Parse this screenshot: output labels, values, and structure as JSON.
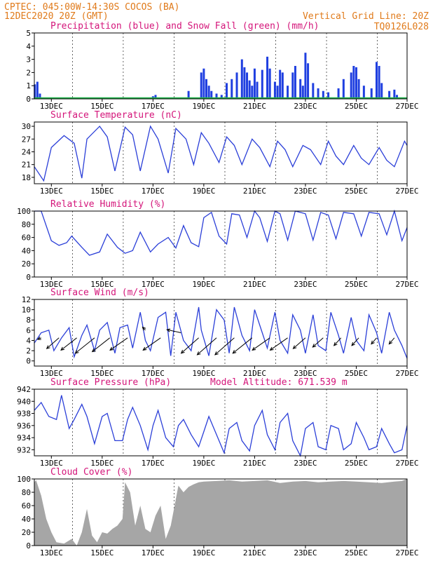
{
  "header": {
    "line1_left": "CPTEC:   045:00W-14:30S   COCOS (BA)",
    "line2_left": "12DEC2020 20Z (GMT)",
    "line1_right": "Vertical Grid Line: 20Z",
    "line2_right": "TQ0126L028"
  },
  "colors": {
    "header": "#e07a1a",
    "title": "#d4157a",
    "precip": "#1f3fe0",
    "snow": "#22b14c",
    "line": "#2b3fd8",
    "wind_arrow": "#000000",
    "cloud": "#a6a6a6"
  },
  "x_axis": {
    "start_day": 12.33,
    "end_day": 27.0,
    "tick_days": [
      13,
      15,
      17,
      19,
      21,
      23,
      25,
      27
    ],
    "tick_labels": [
      "13DEC",
      "15DEC",
      "17DEC",
      "19DEC",
      "21DEC",
      "23DEC",
      "25DEC",
      "27DEC"
    ],
    "grid_days": [
      13.83,
      15.83,
      17.83,
      19.83,
      21.83,
      23.83,
      25.83
    ]
  },
  "chart_data": [
    {
      "id": "precip",
      "type": "bar",
      "title": "Precipitation (blue) and Snow Fall (green) (mm/h)",
      "ylim": [
        0,
        5
      ],
      "yticks": [
        0,
        1,
        2,
        3,
        4,
        5
      ],
      "series": [
        {
          "name": "Precipitation",
          "x": [
            12.35,
            12.45,
            12.55,
            13.3,
            17.0,
            17.1,
            18.4,
            18.9,
            19.0,
            19.1,
            19.2,
            19.3,
            19.5,
            19.7,
            19.9,
            20.1,
            20.3,
            20.5,
            20.6,
            20.7,
            20.8,
            20.9,
            21.0,
            21.1,
            21.3,
            21.5,
            21.6,
            21.8,
            21.9,
            22.0,
            22.1,
            22.3,
            22.5,
            22.6,
            22.8,
            22.9,
            23.0,
            23.1,
            23.3,
            23.5,
            23.7,
            23.9,
            24.3,
            24.5,
            24.8,
            24.9,
            25.0,
            25.1,
            25.3,
            25.6,
            25.8,
            25.9,
            26.0,
            26.3,
            26.5,
            26.6
          ],
          "values": [
            1.1,
            1.3,
            0.4,
            0.1,
            0.2,
            0.3,
            0.6,
            2.0,
            2.3,
            1.5,
            1.0,
            0.6,
            0.4,
            0.3,
            1.2,
            1.5,
            2.0,
            3.0,
            2.4,
            2.0,
            1.4,
            1.0,
            2.3,
            1.3,
            2.2,
            3.2,
            2.3,
            1.3,
            1.0,
            2.2,
            2.0,
            1.0,
            2.0,
            2.5,
            1.5,
            1.0,
            3.5,
            2.7,
            1.2,
            0.8,
            0.6,
            0.5,
            0.8,
            1.5,
            2.0,
            2.5,
            2.4,
            1.5,
            1.0,
            0.8,
            2.8,
            2.5,
            1.2,
            0.6,
            0.7,
            0.3
          ]
        },
        {
          "name": "Snow Fall",
          "x": [
            12.33,
            27.0
          ],
          "values": [
            0,
            0
          ]
        }
      ]
    },
    {
      "id": "temp",
      "type": "line",
      "title": "Surface Temperature (nC)",
      "ylim": [
        16.5,
        31
      ],
      "yticks": [
        18,
        21,
        24,
        27,
        30
      ],
      "series": [
        {
          "name": "Temperature",
          "x": [
            12.33,
            12.7,
            13.0,
            13.5,
            13.9,
            14.2,
            14.4,
            14.9,
            15.2,
            15.5,
            15.9,
            16.2,
            16.5,
            16.9,
            17.2,
            17.6,
            17.9,
            18.3,
            18.6,
            18.9,
            19.2,
            19.6,
            19.9,
            20.2,
            20.5,
            20.9,
            21.2,
            21.6,
            21.9,
            22.2,
            22.5,
            22.9,
            23.2,
            23.6,
            23.9,
            24.2,
            24.5,
            24.9,
            25.2,
            25.5,
            25.9,
            26.2,
            26.5,
            26.9,
            27.0
          ],
          "values": [
            20.5,
            17.2,
            25.0,
            27.8,
            26.0,
            17.8,
            27.0,
            30.0,
            27.5,
            19.5,
            29.8,
            28.0,
            19.5,
            30.0,
            27.0,
            19.0,
            29.5,
            27.0,
            21.0,
            28.5,
            26.0,
            21.5,
            27.5,
            25.5,
            21.0,
            27.0,
            25.0,
            20.5,
            26.5,
            24.5,
            20.5,
            25.5,
            24.5,
            21.0,
            26.5,
            23.0,
            21.0,
            25.5,
            22.5,
            21.0,
            25.0,
            22.0,
            20.5,
            26.5,
            25.5
          ]
        }
      ]
    },
    {
      "id": "rh",
      "type": "line",
      "title": "Relative Humidity (%)",
      "ylim": [
        0,
        100
      ],
      "yticks": [
        0,
        20,
        40,
        60,
        80,
        100
      ],
      "series": [
        {
          "name": "Relative Humidity",
          "x": [
            12.33,
            12.6,
            13.0,
            13.3,
            13.6,
            13.8,
            14.2,
            14.5,
            14.9,
            15.2,
            15.6,
            15.9,
            16.2,
            16.5,
            16.9,
            17.2,
            17.6,
            17.9,
            18.2,
            18.5,
            18.8,
            19.0,
            19.3,
            19.6,
            19.9,
            20.1,
            20.4,
            20.7,
            21.0,
            21.2,
            21.5,
            21.8,
            22.0,
            22.3,
            22.6,
            23.0,
            23.3,
            23.6,
            23.9,
            24.2,
            24.5,
            24.9,
            25.2,
            25.5,
            25.9,
            26.2,
            26.5,
            26.8,
            27.0
          ],
          "values": [
            100,
            100,
            55,
            48,
            52,
            62,
            45,
            33,
            38,
            65,
            45,
            36,
            40,
            68,
            38,
            50,
            60,
            44,
            78,
            52,
            46,
            90,
            98,
            62,
            50,
            96,
            94,
            60,
            100,
            90,
            54,
            100,
            96,
            56,
            100,
            96,
            56,
            98,
            94,
            58,
            98,
            96,
            62,
            98,
            96,
            64,
            100,
            55,
            75
          ]
        }
      ]
    },
    {
      "id": "wind",
      "type": "line",
      "title": "Surface Wind (m/s)",
      "ylim": [
        -1,
        12
      ],
      "yticks": [
        0,
        2,
        4,
        6,
        8,
        10,
        12
      ],
      "series": [
        {
          "name": "Wind speed",
          "x": [
            12.33,
            12.6,
            12.9,
            13.1,
            13.4,
            13.7,
            13.9,
            14.2,
            14.4,
            14.7,
            14.9,
            15.2,
            15.5,
            15.7,
            16.0,
            16.2,
            16.5,
            16.7,
            16.9,
            17.2,
            17.5,
            17.7,
            17.9,
            18.2,
            18.5,
            18.8,
            18.9,
            19.2,
            19.5,
            19.8,
            20.0,
            20.2,
            20.5,
            20.8,
            21.0,
            21.3,
            21.5,
            21.8,
            22.0,
            22.3,
            22.5,
            22.8,
            23.0,
            23.3,
            23.5,
            23.8,
            24.0,
            24.3,
            24.5,
            24.8,
            25.0,
            25.3,
            25.5,
            25.8,
            26.0,
            26.3,
            26.5,
            26.8,
            27.0
          ],
          "values": [
            3.5,
            5.5,
            6.0,
            2.0,
            4.5,
            6.5,
            0.8,
            5.0,
            7.0,
            2.0,
            6.0,
            7.5,
            1.5,
            6.5,
            7.0,
            2.5,
            9.5,
            4.0,
            2.0,
            8.5,
            9.5,
            1.0,
            9.5,
            4.0,
            2.0,
            10.5,
            6.0,
            1.0,
            10.0,
            8.0,
            1.5,
            10.5,
            5.0,
            2.0,
            10.0,
            5.5,
            2.5,
            9.5,
            4.0,
            1.5,
            9.0,
            6.0,
            1.5,
            9.0,
            3.0,
            2.0,
            9.5,
            5.0,
            1.5,
            8.5,
            4.0,
            2.0,
            9.0,
            5.5,
            1.5,
            9.5,
            6.0,
            3.0,
            0.5
          ]
        },
        {
          "name": "Wind vectors",
          "x": [
            12.6,
            13.3,
            14.0,
            14.7,
            15.3,
            16.0,
            16.7,
            17.3,
            18.1,
            18.8,
            19.5,
            20.2,
            20.9,
            21.6,
            22.3,
            23.0,
            23.7,
            24.4,
            25.1,
            25.8,
            26.5
          ],
          "y": [
            4.5,
            4.5,
            4.5,
            4.5,
            4.5,
            4.5,
            6.0,
            4.5,
            5.5,
            4.5,
            4.5,
            4.5,
            4.5,
            4.5,
            4.5,
            4.5,
            4.5,
            4.5,
            4.5,
            4.5,
            4.5
          ],
          "u": [
            -1.0,
            -3.5,
            -4.5,
            -5.5,
            -5.0,
            -5.0,
            -0.8,
            -5.0,
            -4.0,
            -5.0,
            -5.5,
            -5.5,
            -5.5,
            -5.0,
            -5.0,
            -3.5,
            -3.0,
            -2.0,
            -2.0,
            -1.5,
            -1.5
          ],
          "v": [
            -0.5,
            -3.5,
            -4.0,
            -5.0,
            -4.5,
            -4.0,
            1.0,
            -4.0,
            1.0,
            -5.0,
            -5.5,
            -5.5,
            -5.0,
            -4.0,
            -4.0,
            -3.5,
            -3.0,
            -2.5,
            -2.5,
            -2.0,
            -2.0
          ]
        }
      ]
    },
    {
      "id": "pres",
      "type": "line",
      "title": "Surface Pressure (hPa)",
      "subtitle": "Model Altitude: 671.539  m",
      "ylim": [
        931,
        942
      ],
      "yticks": [
        932,
        934,
        936,
        938,
        940,
        942
      ],
      "series": [
        {
          "name": "Pressure",
          "x": [
            12.33,
            12.6,
            12.9,
            13.2,
            13.4,
            13.7,
            13.9,
            14.2,
            14.4,
            14.7,
            15.0,
            15.2,
            15.5,
            15.8,
            16.0,
            16.2,
            16.5,
            16.8,
            17.0,
            17.2,
            17.5,
            17.8,
            18.0,
            18.2,
            18.5,
            18.8,
            19.0,
            19.2,
            19.5,
            19.8,
            20.0,
            20.3,
            20.5,
            20.8,
            21.0,
            21.3,
            21.5,
            21.8,
            22.0,
            22.3,
            22.5,
            22.8,
            23.0,
            23.3,
            23.5,
            23.8,
            24.0,
            24.3,
            24.5,
            24.8,
            25.0,
            25.3,
            25.5,
            25.8,
            26.0,
            26.3,
            26.5,
            26.8,
            27.0
          ],
          "values": [
            938.5,
            939.8,
            937.5,
            937.0,
            941.0,
            935.5,
            937.0,
            939.5,
            937.5,
            933.0,
            937.5,
            938.0,
            933.5,
            933.5,
            937.0,
            939.0,
            936.0,
            932.0,
            936.0,
            938.5,
            934.0,
            932.5,
            936.0,
            937.0,
            934.5,
            932.5,
            935.0,
            937.5,
            934.5,
            931.5,
            935.5,
            936.5,
            933.5,
            931.8,
            936.0,
            938.5,
            934.5,
            932.0,
            936.5,
            938.0,
            933.5,
            931.0,
            935.5,
            936.5,
            932.5,
            932.0,
            936.0,
            935.5,
            932.0,
            933.0,
            936.5,
            934.0,
            932.0,
            932.5,
            935.5,
            933.0,
            931.5,
            932.0,
            936.0
          ]
        }
      ]
    },
    {
      "id": "cloud",
      "type": "area",
      "title": "Cloud Cover (%)",
      "ylim": [
        0,
        100
      ],
      "yticks": [
        0,
        20,
        40,
        60,
        80,
        100
      ],
      "series": [
        {
          "name": "Cloud Cover",
          "x": [
            12.33,
            12.4,
            12.6,
            12.8,
            12.9,
            13.0,
            13.2,
            13.5,
            13.8,
            14.0,
            14.2,
            14.4,
            14.6,
            14.8,
            15.0,
            15.2,
            15.4,
            15.6,
            15.8,
            15.9,
            16.1,
            16.3,
            16.5,
            16.7,
            16.9,
            17.1,
            17.3,
            17.5,
            17.7,
            17.9,
            18.0,
            18.2,
            18.4,
            18.6,
            18.8,
            19.0,
            19.5,
            20.0,
            20.5,
            21.0,
            21.5,
            22.0,
            22.5,
            23.0,
            23.5,
            24.0,
            24.5,
            25.0,
            25.5,
            26.0,
            26.5,
            26.8,
            27.0
          ],
          "values": [
            95,
            98,
            75,
            40,
            30,
            20,
            5,
            3,
            10,
            0,
            20,
            55,
            15,
            5,
            20,
            18,
            25,
            30,
            40,
            95,
            80,
            30,
            60,
            25,
            20,
            45,
            60,
            10,
            30,
            70,
            90,
            80,
            88,
            92,
            95,
            96,
            97,
            98,
            96,
            97,
            98,
            94,
            96,
            97,
            95,
            96,
            97,
            96,
            95,
            94,
            96,
            97,
            100
          ]
        }
      ]
    }
  ]
}
